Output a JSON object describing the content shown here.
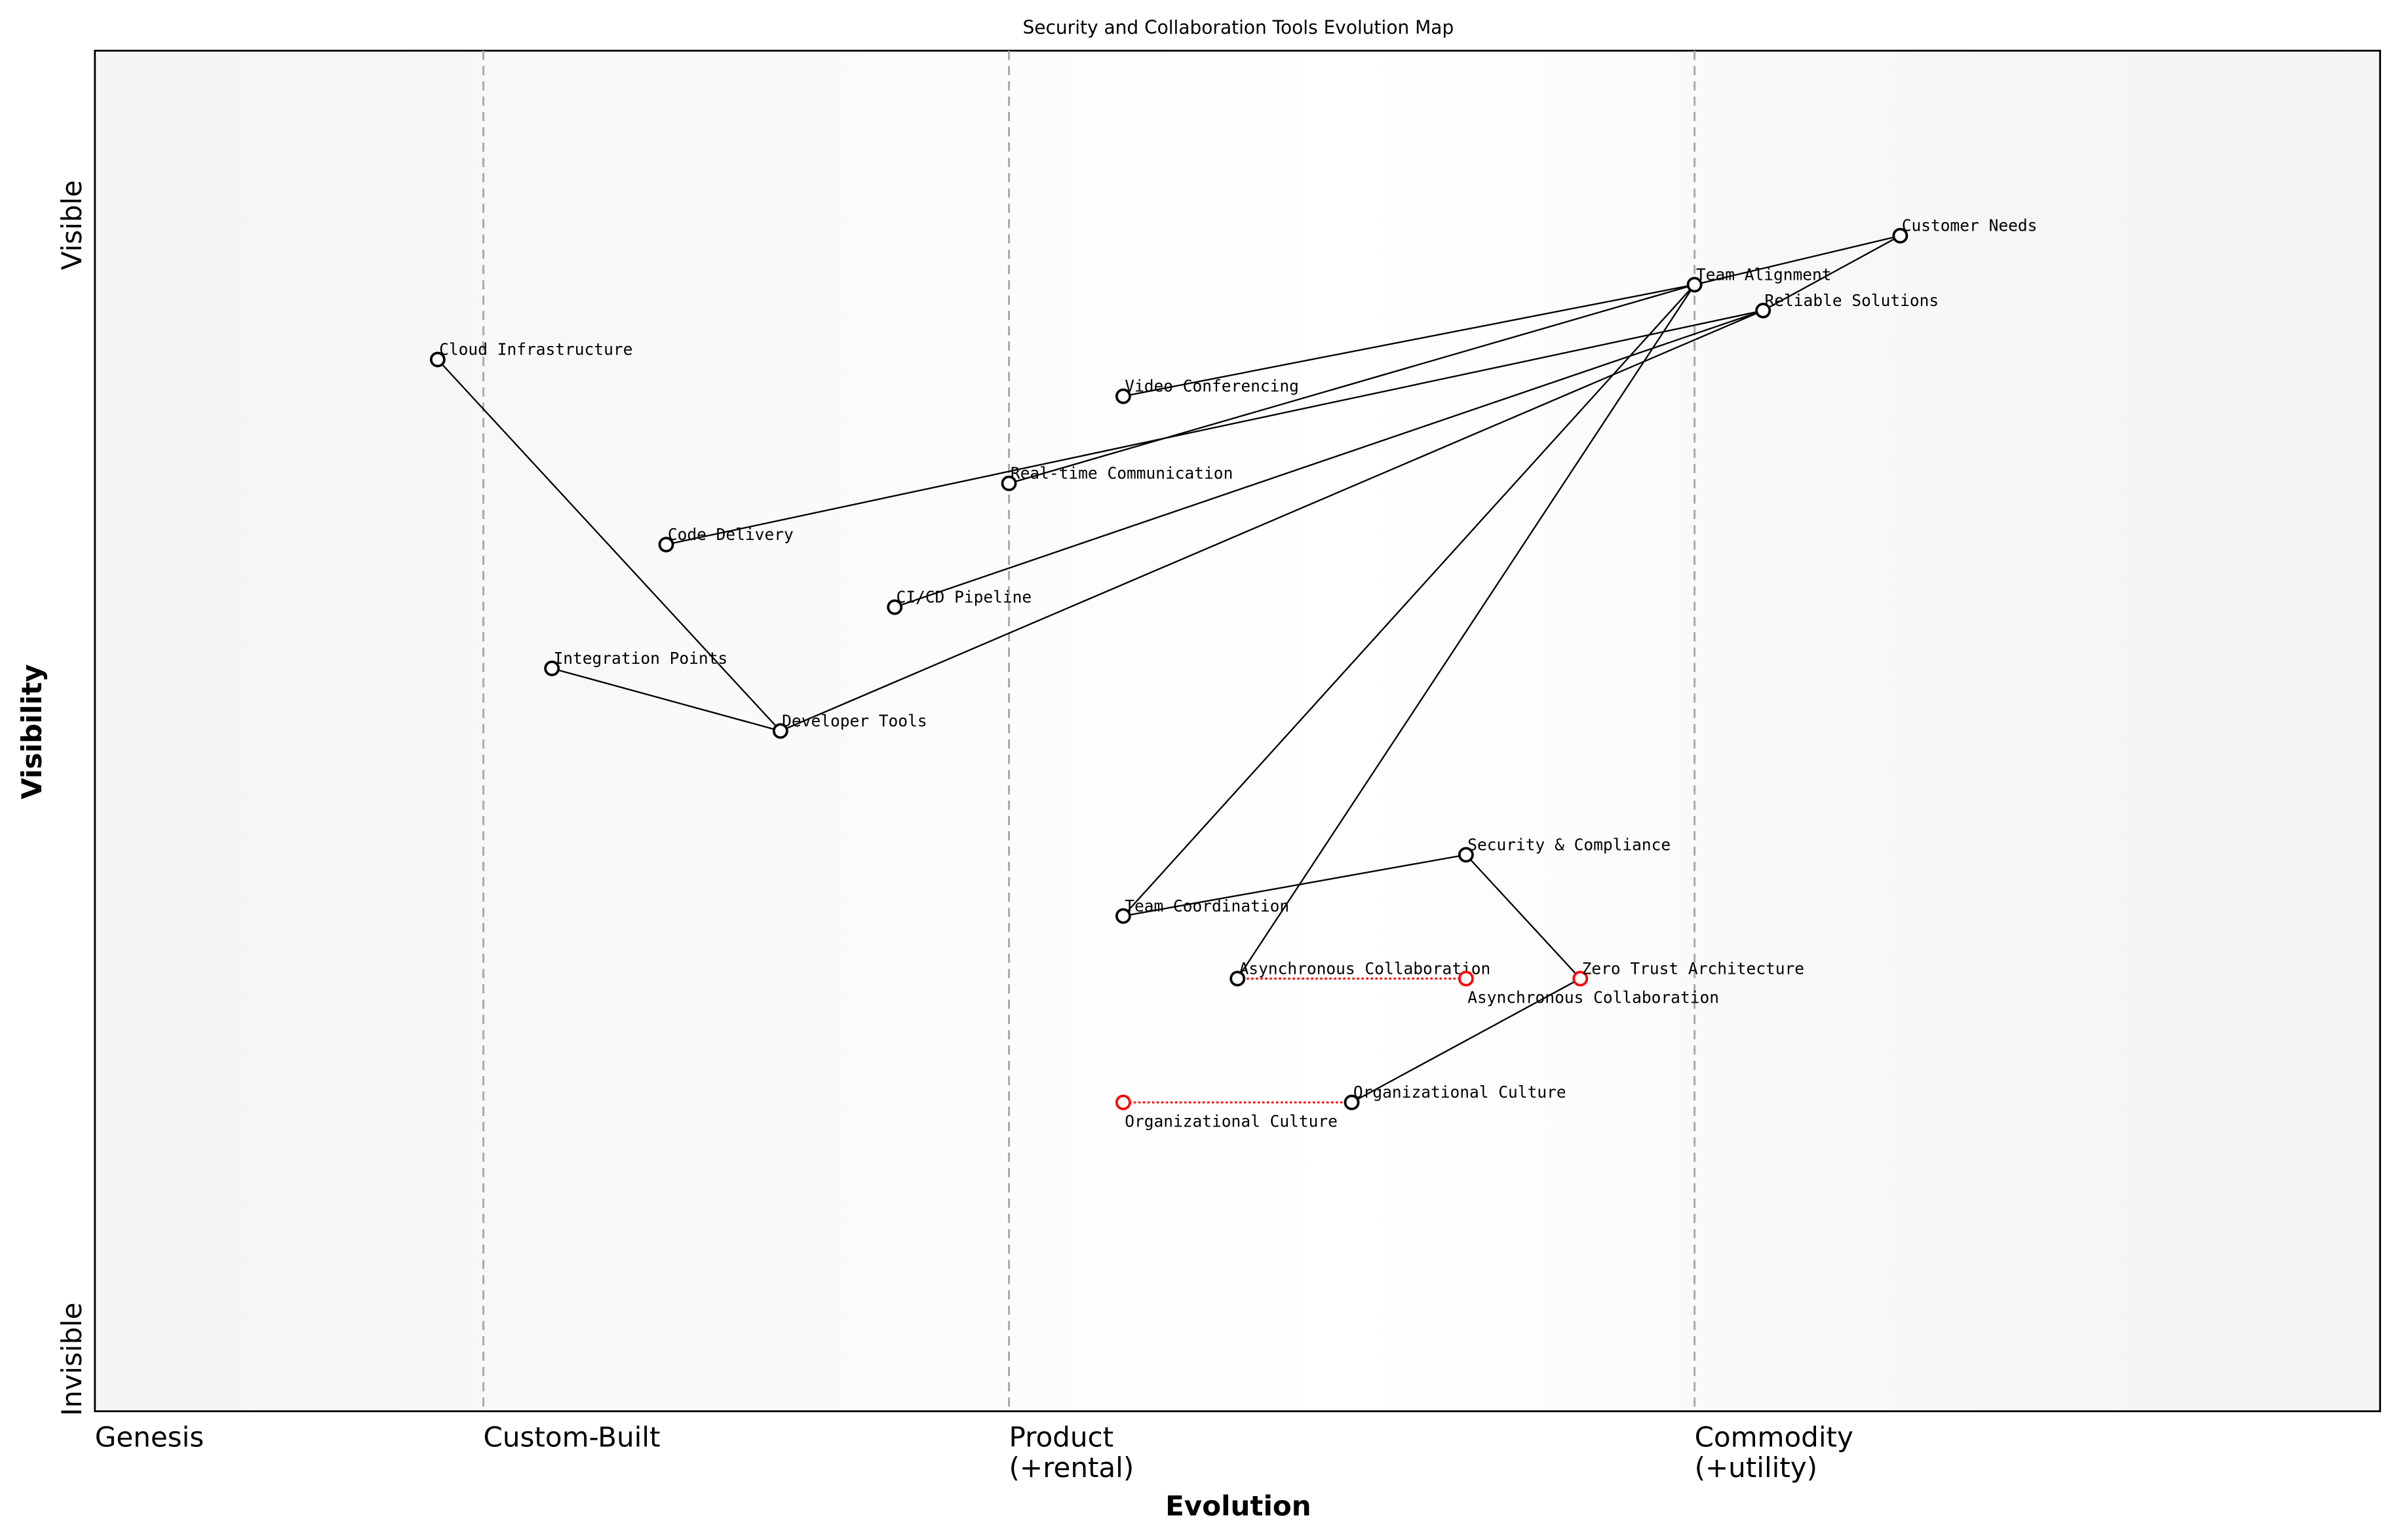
{
  "title": "Security and Collaboration Tools Evolution Map",
  "x_axis": {
    "label": "Evolution",
    "stages": [
      {
        "label": "Genesis",
        "sub": "",
        "at": 0.0
      },
      {
        "label": "Custom-Built",
        "sub": "",
        "at": 0.17
      },
      {
        "label": "Product",
        "sub": "(+rental)",
        "at": 0.4
      },
      {
        "label": "Commodity",
        "sub": "(+utility)",
        "at": 0.7
      }
    ]
  },
  "y_axis": {
    "label": "Visibility",
    "top": "Visible",
    "bottom": "Invisible"
  },
  "colors": {
    "node": "#000000",
    "evolved": "#ff0000",
    "divider": "#aaaaaa"
  },
  "nodes": [
    {
      "id": "customer-needs",
      "label": "Customer Needs",
      "evolution": 0.79,
      "visibility": 0.864
    },
    {
      "id": "team-alignment",
      "label": "Team Alignment",
      "evolution": 0.7,
      "visibility": 0.828
    },
    {
      "id": "reliable-solutions",
      "label": "Reliable Solutions",
      "evolution": 0.73,
      "visibility": 0.809
    },
    {
      "id": "cloud-infrastructure",
      "label": "Cloud Infrastructure",
      "evolution": 0.15,
      "visibility": 0.773
    },
    {
      "id": "video-conferencing",
      "label": "Video Conferencing",
      "evolution": 0.45,
      "visibility": 0.746
    },
    {
      "id": "real-time-communication",
      "label": "Real-time Communication",
      "evolution": 0.4,
      "visibility": 0.682
    },
    {
      "id": "code-delivery",
      "label": "Code Delivery",
      "evolution": 0.25,
      "visibility": 0.637
    },
    {
      "id": "ci-cd-pipeline",
      "label": "CI/CD Pipeline",
      "evolution": 0.35,
      "visibility": 0.591
    },
    {
      "id": "integration-points",
      "label": "Integration Points",
      "evolution": 0.2,
      "visibility": 0.546
    },
    {
      "id": "developer-tools",
      "label": "Developer Tools",
      "evolution": 0.3,
      "visibility": 0.5
    },
    {
      "id": "security-compliance",
      "label": "Security & Compliance",
      "evolution": 0.6,
      "visibility": 0.409
    },
    {
      "id": "team-coordination",
      "label": "Team Coordination",
      "evolution": 0.45,
      "visibility": 0.364
    },
    {
      "id": "asynchronous-collaboration",
      "label": "Asynchronous Collaboration",
      "evolution": 0.5,
      "visibility": 0.318
    },
    {
      "id": "asynchronous-collaboration-evolved",
      "label": "Asynchronous Collaboration",
      "evolution": 0.6,
      "visibility": 0.318,
      "evolved": true
    },
    {
      "id": "zero-trust-architecture",
      "label": "Zero Trust Architecture",
      "evolution": 0.65,
      "visibility": 0.318,
      "evolved": true
    },
    {
      "id": "organizational-culture",
      "label": "Organizational Culture",
      "evolution": 0.55,
      "visibility": 0.227
    },
    {
      "id": "organizational-culture-evolved",
      "label": "Organizational Culture",
      "evolution": 0.45,
      "visibility": 0.227,
      "evolved": true
    }
  ],
  "links": [
    [
      "customer-needs",
      "team-alignment"
    ],
    [
      "customer-needs",
      "reliable-solutions"
    ],
    [
      "team-alignment",
      "video-conferencing"
    ],
    [
      "team-alignment",
      "real-time-communication"
    ],
    [
      "team-alignment",
      "team-coordination"
    ],
    [
      "team-alignment",
      "asynchronous-collaboration"
    ],
    [
      "reliable-solutions",
      "code-delivery"
    ],
    [
      "reliable-solutions",
      "ci-cd-pipeline"
    ],
    [
      "reliable-solutions",
      "developer-tools"
    ],
    [
      "cloud-infrastructure",
      "developer-tools"
    ],
    [
      "integration-points",
      "developer-tools"
    ],
    [
      "team-coordination",
      "security-compliance"
    ],
    [
      "security-compliance",
      "zero-trust-architecture"
    ],
    [
      "zero-trust-architecture",
      "organizational-culture"
    ]
  ],
  "evolutions": [
    [
      "asynchronous-collaboration",
      "asynchronous-collaboration-evolved"
    ],
    [
      "organizational-culture",
      "organizational-culture-evolved"
    ]
  ]
}
